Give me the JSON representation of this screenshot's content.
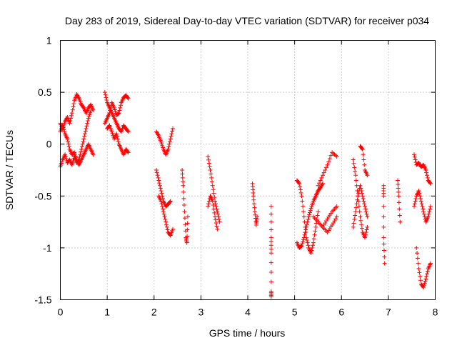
{
  "chart_data": {
    "type": "scatter",
    "title": "Day 283 of 2019, Sidereal Day-to-day VTEC variation (SDTVAR) for receiver p034",
    "xlabel": "GPS time / hours",
    "ylabel": "SDTVAR / TECUs",
    "xlim": [
      0,
      8
    ],
    "ylim": [
      -1.5,
      1
    ],
    "xticks": [
      0,
      1,
      2,
      3,
      4,
      5,
      6,
      7,
      8
    ],
    "xtick_labels": [
      "0",
      "1",
      "2",
      "3",
      "4",
      "5",
      "6",
      "7",
      "8"
    ],
    "yticks": [
      -1.5,
      -1,
      -0.5,
      0,
      0.5,
      1
    ],
    "ytick_labels": [
      "-1.5",
      "-1",
      "-0.5",
      "0",
      "0.5",
      "1"
    ],
    "grid": true,
    "marker": "+",
    "color": "#ff0000",
    "segments": [
      {
        "x": [
          0.0,
          0.05,
          0.1,
          0.15,
          0.2,
          0.25,
          0.3,
          0.35,
          0.4,
          0.45,
          0.5,
          0.55,
          0.6,
          0.65,
          0.7
        ],
        "y": [
          0.2,
          0.15,
          0.22,
          0.26,
          0.2,
          0.3,
          0.42,
          0.48,
          0.44,
          0.38,
          0.35,
          0.3,
          0.35,
          0.38,
          0.33
        ]
      },
      {
        "x": [
          0.0,
          0.05,
          0.1,
          0.15,
          0.2,
          0.25,
          0.3,
          0.35,
          0.4,
          0.45,
          0.5,
          0.55,
          0.6,
          0.65
        ],
        "y": [
          -0.22,
          -0.15,
          -0.1,
          -0.18,
          -0.15,
          -0.2,
          -0.12,
          -0.18,
          -0.15,
          -0.05,
          0.05,
          0.15,
          0.25,
          0.32
        ]
      },
      {
        "x": [
          0.0,
          0.05,
          0.1,
          0.15,
          0.2,
          0.25,
          0.3,
          0.35,
          0.4,
          0.45,
          0.5,
          0.55,
          0.6,
          0.65,
          0.7
        ],
        "y": [
          0.12,
          0.18,
          0.1,
          0.05,
          -0.05,
          -0.1,
          -0.08,
          -0.15,
          -0.2,
          -0.15,
          -0.1,
          -0.05,
          0.0,
          -0.05,
          -0.1
        ]
      },
      {
        "x": [
          0.95,
          1.0,
          1.05,
          1.1,
          1.15,
          1.2,
          1.25,
          1.3,
          1.35,
          1.4,
          1.45
        ],
        "y": [
          0.5,
          0.4,
          0.35,
          0.3,
          0.25,
          0.2,
          0.15,
          0.12,
          0.18,
          0.15,
          0.12
        ]
      },
      {
        "x": [
          0.95,
          1.0,
          1.05,
          1.1,
          1.15,
          1.2,
          1.25,
          1.3,
          1.35,
          1.4,
          1.45
        ],
        "y": [
          0.2,
          0.25,
          0.3,
          0.4,
          0.35,
          0.28,
          0.3,
          0.4,
          0.45,
          0.47,
          0.44
        ]
      },
      {
        "x": [
          1.0,
          1.05,
          1.1,
          1.15,
          1.2,
          1.25,
          1.3,
          1.35,
          1.4,
          1.45
        ],
        "y": [
          0.15,
          0.18,
          0.12,
          0.05,
          0.1,
          0.0,
          -0.05,
          -0.1,
          -0.05,
          -0.08
        ]
      },
      {
        "x": [
          2.05,
          2.1,
          2.15,
          2.2,
          2.25,
          2.3,
          2.35,
          2.4
        ],
        "y": [
          0.12,
          0.08,
          0.02,
          -0.05,
          -0.1,
          -0.05,
          0.05,
          0.15
        ]
      },
      {
        "x": [
          2.05,
          2.1,
          2.15,
          2.2,
          2.25,
          2.3,
          2.35
        ],
        "y": [
          -0.25,
          -0.35,
          -0.45,
          -0.55,
          -0.6,
          -0.58,
          -0.55
        ]
      },
      {
        "x": [
          2.1,
          2.15,
          2.2,
          2.25,
          2.3,
          2.35,
          2.4
        ],
        "y": [
          -0.5,
          -0.55,
          -0.65,
          -0.75,
          -0.85,
          -0.88,
          -0.82
        ]
      },
      {
        "x": [
          2.6,
          2.62,
          2.65,
          2.68,
          2.7,
          2.72
        ],
        "y": [
          -0.25,
          -0.4,
          -0.65,
          -0.9,
          -0.95,
          -0.7
        ]
      },
      {
        "x": [
          3.15,
          3.2,
          3.25,
          3.3,
          3.35,
          3.4
        ],
        "y": [
          -0.12,
          -0.25,
          -0.4,
          -0.55,
          -0.65,
          -0.75
        ]
      },
      {
        "x": [
          3.15,
          3.2,
          3.25,
          3.3,
          3.35
        ],
        "y": [
          -0.6,
          -0.5,
          -0.55,
          -0.7,
          -0.82
        ]
      },
      {
        "x": [
          4.1,
          4.12,
          4.15,
          4.18,
          4.2
        ],
        "y": [
          -0.38,
          -0.5,
          -0.65,
          -0.78,
          -0.7
        ]
      },
      {
        "x": [
          4.5,
          4.5,
          4.5,
          4.5,
          4.5
        ],
        "y": [
          -0.6,
          -0.9,
          -1.05,
          -1.42,
          -1.47
        ]
      },
      {
        "x": [
          5.05,
          5.1,
          5.15,
          5.2,
          5.25,
          5.3,
          5.35,
          5.4,
          5.45,
          5.5
        ],
        "y": [
          -0.35,
          -0.38,
          -0.5,
          -0.7,
          -0.9,
          -1.0,
          -1.05,
          -0.95,
          -0.8,
          -0.65
        ]
      },
      {
        "x": [
          5.05,
          5.1,
          5.15,
          5.2,
          5.25,
          5.3,
          5.35,
          5.4,
          5.45,
          5.5,
          5.55,
          5.6
        ],
        "y": [
          -0.95,
          -1.0,
          -0.98,
          -0.9,
          -0.8,
          -0.7,
          -0.62,
          -0.55,
          -0.5,
          -0.45,
          -0.42,
          -0.38
        ]
      },
      {
        "x": [
          5.4,
          5.5,
          5.6,
          5.7,
          5.8,
          5.9
        ],
        "y": [
          -0.7,
          -0.75,
          -0.8,
          -0.72,
          -0.65,
          -0.6
        ]
      },
      {
        "x": [
          5.5,
          5.6,
          5.7,
          5.8,
          5.9
        ],
        "y": [
          -0.4,
          -0.3,
          -0.2,
          -0.08,
          -0.12
        ]
      },
      {
        "x": [
          5.6,
          5.7,
          5.8,
          5.9
        ],
        "y": [
          -0.8,
          -0.85,
          -0.78,
          -0.7
        ]
      },
      {
        "x": [
          6.25,
          6.3,
          6.35,
          6.4,
          6.45,
          6.5,
          6.55
        ],
        "y": [
          -0.15,
          -0.3,
          -0.5,
          -0.7,
          -0.85,
          -0.9,
          -0.8
        ]
      },
      {
        "x": [
          6.25,
          6.3,
          6.35,
          6.4,
          6.45,
          6.5,
          6.55
        ],
        "y": [
          -0.8,
          -0.65,
          -0.5,
          -0.4,
          -0.5,
          -0.6,
          -0.7
        ]
      },
      {
        "x": [
          6.4,
          6.45,
          6.5,
          6.55
        ],
        "y": [
          -0.02,
          -0.05,
          -0.25,
          -0.3
        ]
      },
      {
        "x": [
          6.9,
          6.9,
          6.9,
          6.92
        ],
        "y": [
          -0.4,
          -0.5,
          -0.9,
          -1.15
        ]
      },
      {
        "x": [
          7.2,
          7.22,
          7.25
        ],
        "y": [
          -0.35,
          -0.5,
          -0.75
        ]
      },
      {
        "x": [
          7.55,
          7.6,
          7.65,
          7.7,
          7.75,
          7.8,
          7.85,
          7.9
        ],
        "y": [
          -0.1,
          -0.2,
          -0.18,
          -0.22,
          -0.2,
          -0.25,
          -0.35,
          -0.38
        ]
      },
      {
        "x": [
          7.55,
          7.6,
          7.65,
          7.7,
          7.75,
          7.8,
          7.85,
          7.9
        ],
        "y": [
          -0.6,
          -0.5,
          -0.45,
          -0.55,
          -0.65,
          -0.75,
          -0.7,
          -0.6
        ]
      },
      {
        "x": [
          7.6,
          7.65,
          7.7,
          7.75,
          7.8,
          7.85,
          7.9
        ],
        "y": [
          -1.0,
          -1.2,
          -1.35,
          -1.38,
          -1.3,
          -1.2,
          -1.15
        ]
      }
    ]
  }
}
